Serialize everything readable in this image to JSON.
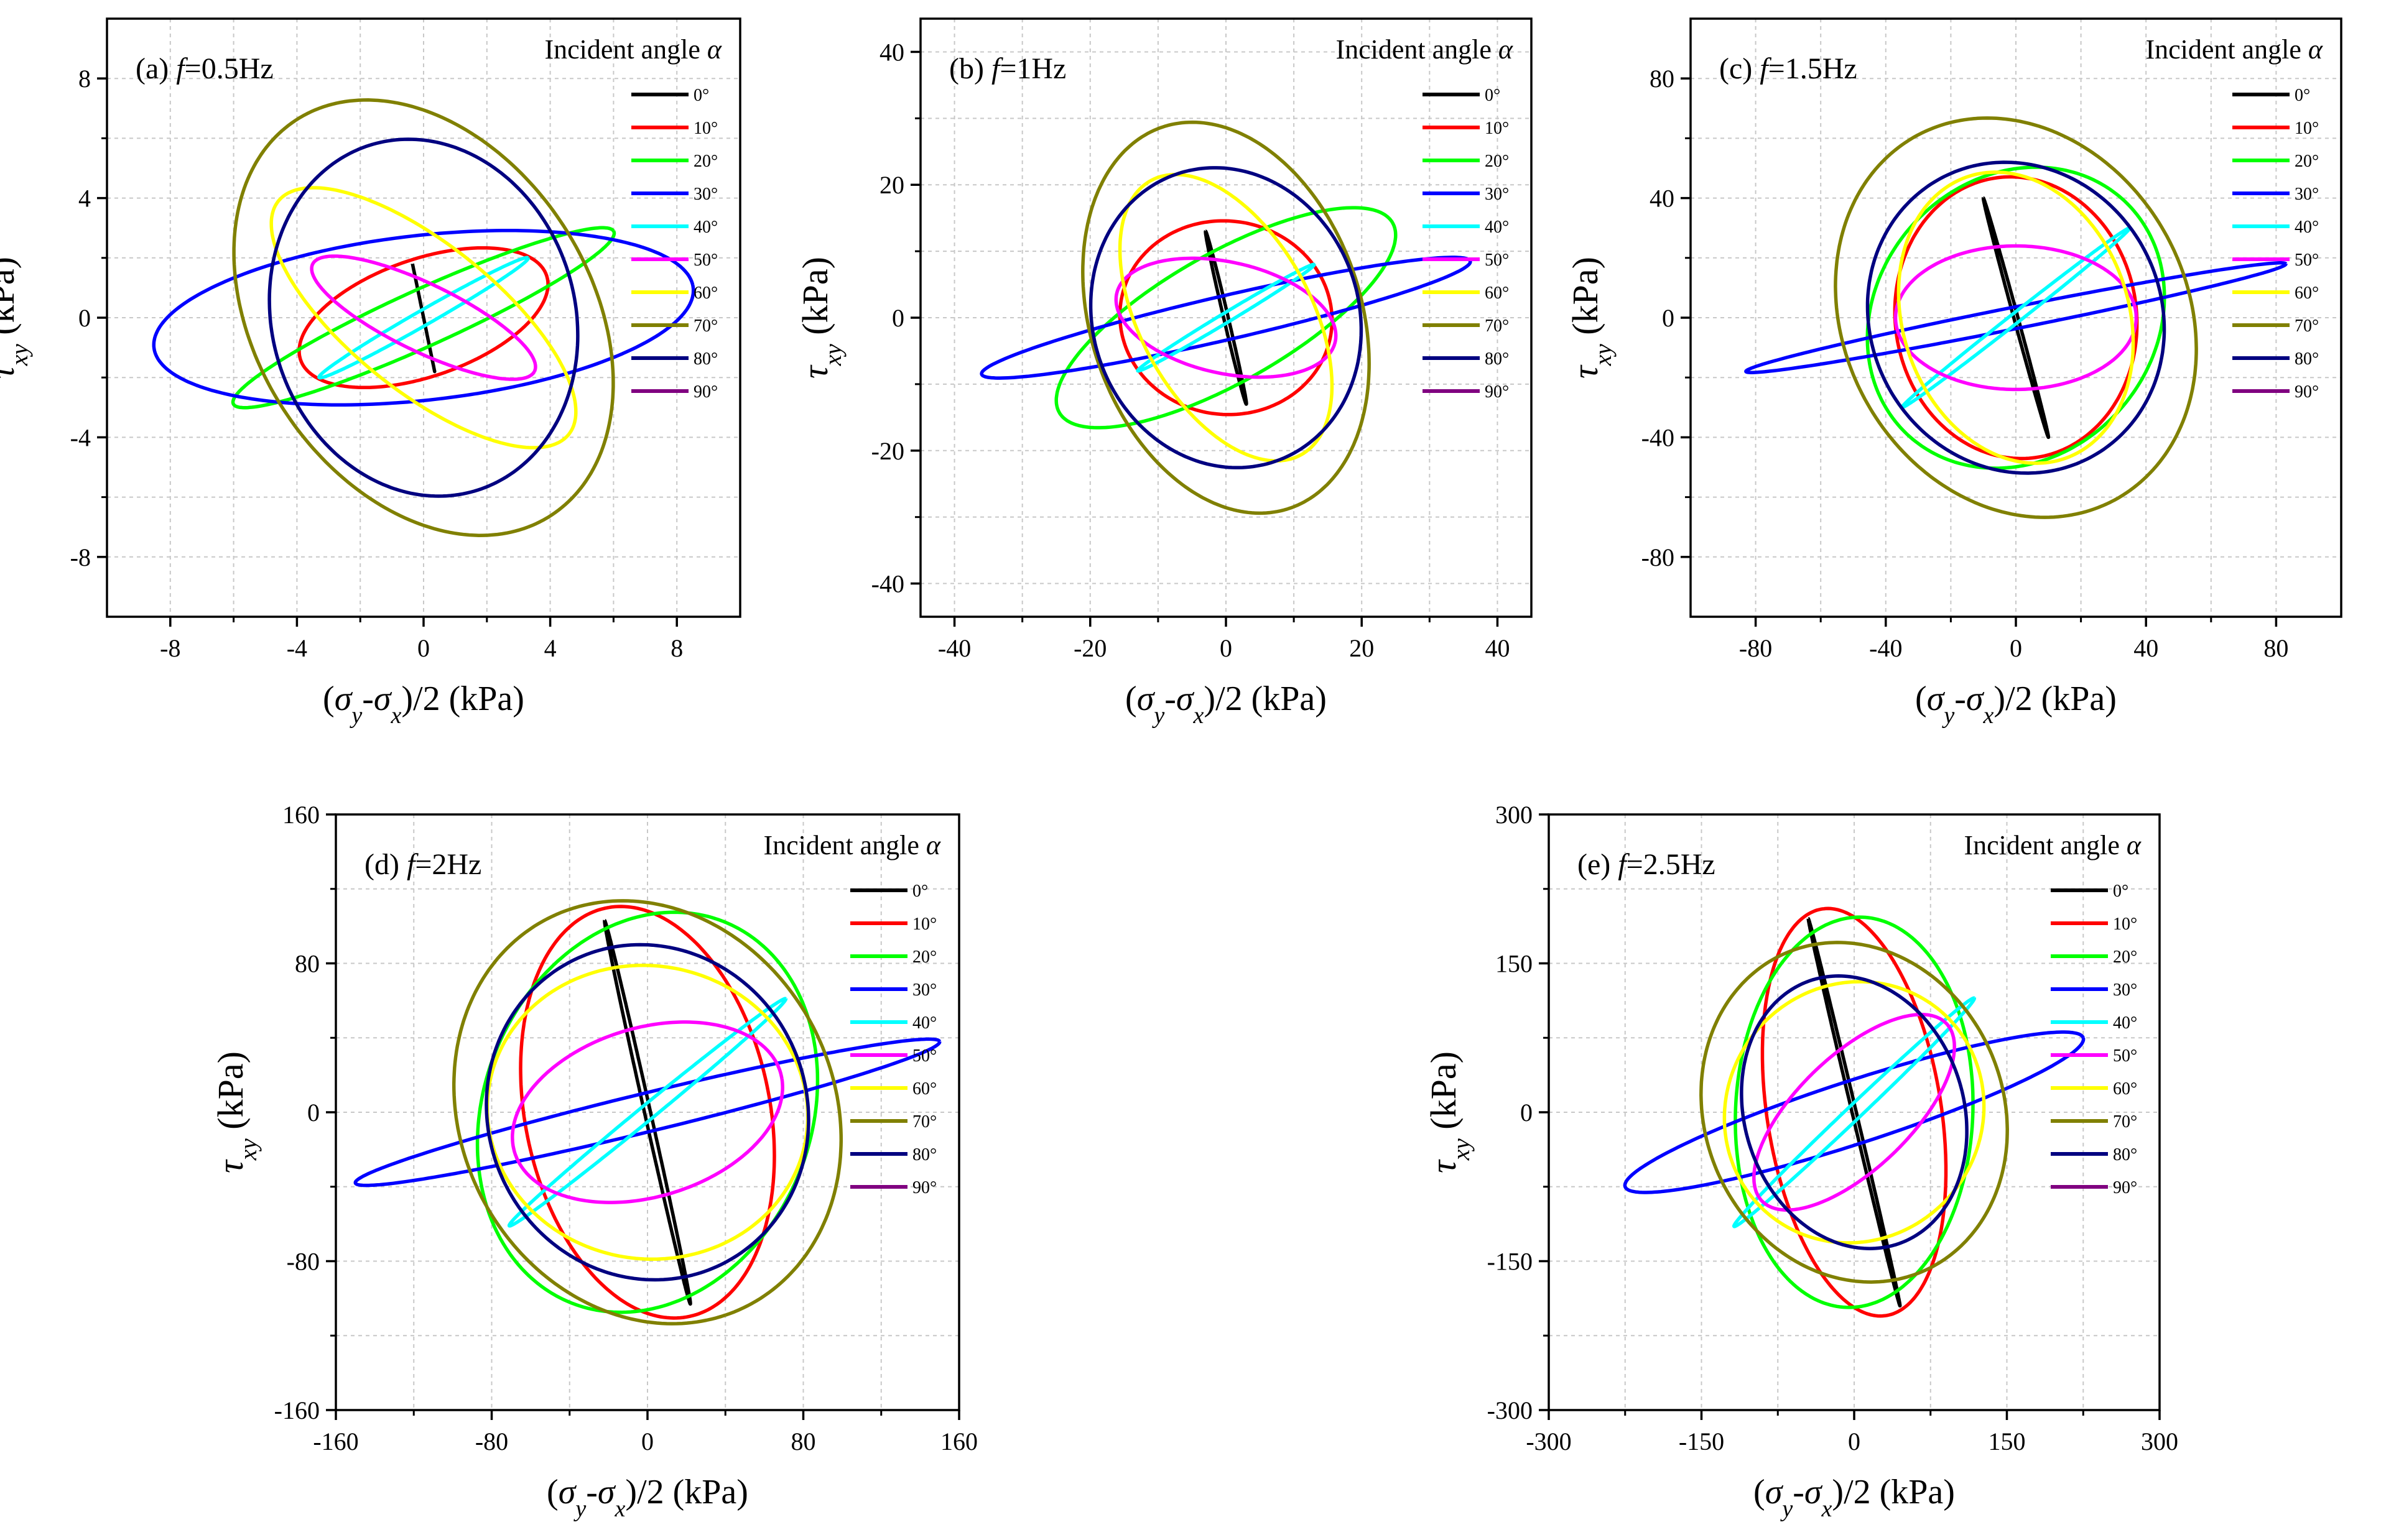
{
  "figure": {
    "legend_title": "Incident angle α",
    "xlabel": "(σy-σx)/2 (kPa)",
    "ylabel": "τxy (kPa)"
  },
  "legend_entries": [
    {
      "label": "0°",
      "color": "#000000"
    },
    {
      "label": "10°",
      "color": "#ff0000"
    },
    {
      "label": "20°",
      "color": "#00ff00"
    },
    {
      "label": "30°",
      "color": "#0000ff"
    },
    {
      "label": "40°",
      "color": "#00ffff"
    },
    {
      "label": "50°",
      "color": "#ff00ff"
    },
    {
      "label": "60°",
      "color": "#ffff00"
    },
    {
      "label": "70°",
      "color": "#808000"
    },
    {
      "label": "80°",
      "color": "#000080"
    },
    {
      "label": "90°",
      "color": "#800080"
    }
  ],
  "chart_data": [
    {
      "type": "line",
      "panel_label": "(a)",
      "freq_label": "f=0.5Hz",
      "xlim": [
        -10,
        10
      ],
      "ylim": [
        -10,
        10
      ],
      "xticks": [
        -8,
        -4,
        0,
        4,
        8
      ],
      "yticks": [
        -8,
        -4,
        0,
        4,
        8
      ],
      "series": [
        {
          "name": "0°",
          "ellipse": {
            "cx": 0,
            "cy": 0,
            "u": [
              -0.35,
              1.8
            ],
            "v": [
              0,
              0
            ]
          }
        },
        {
          "name": "10°",
          "ellipse": {
            "cx": 0,
            "cy": 0,
            "u": [
              3.8,
              1.6
            ],
            "v": [
              -1.0,
              1.7
            ]
          }
        },
        {
          "name": "20°",
          "ellipse": {
            "cx": 0,
            "cy": 0,
            "u": [
              6.0,
              2.9
            ],
            "v": [
              -0.5,
              0.8
            ]
          }
        },
        {
          "name": "30°",
          "ellipse": {
            "cx": 0,
            "cy": 0,
            "u": [
              8.5,
              1.1
            ],
            "v": [
              0.6,
              -2.7
            ]
          }
        },
        {
          "name": "40°",
          "ellipse": {
            "cx": 0,
            "cy": 0,
            "u": [
              3.3,
              2.0
            ],
            "v": [
              -0.15,
              0.2
            ]
          }
        },
        {
          "name": "50°",
          "ellipse": {
            "cx": 0,
            "cy": 0,
            "u": [
              3.5,
              -1.8
            ],
            "v": [
              0.5,
              1.0
            ]
          }
        },
        {
          "name": "60°",
          "ellipse": {
            "cx": 0,
            "cy": 0,
            "u": [
              4.5,
              -4.0
            ],
            "v": [
              1.7,
              1.7
            ]
          }
        },
        {
          "name": "70°",
          "ellipse": {
            "cx": 0,
            "cy": 0,
            "u": [
              3.3,
              -7.0
            ],
            "v": [
              5.0,
              2.0
            ]
          }
        },
        {
          "name": "80°",
          "ellipse": {
            "cx": 0,
            "cy": 0,
            "u": [
              -1.6,
              5.8
            ],
            "v": [
              4.6,
              1.4
            ]
          }
        },
        {
          "name": "90°",
          "ellipse": {
            "cx": 0,
            "cy": 0,
            "u": [
              0,
              0
            ],
            "v": [
              0,
              0
            ]
          }
        }
      ]
    },
    {
      "type": "line",
      "panel_label": "(b)",
      "freq_label": "f=1Hz",
      "xlim": [
        -45,
        45
      ],
      "ylim": [
        -45,
        45
      ],
      "xticks": [
        -40,
        -20,
        0,
        20,
        40
      ],
      "yticks": [
        -40,
        -20,
        0,
        20,
        40
      ],
      "series": [
        {
          "name": "0°",
          "ellipse": {
            "cx": 0,
            "cy": 0,
            "u": [
              -3,
              13
            ],
            "v": [
              0.3,
              0.2
            ]
          }
        },
        {
          "name": "10°",
          "ellipse": {
            "cx": 0,
            "cy": 0,
            "u": [
              -2,
              14.5
            ],
            "v": [
              15.5,
              1.5
            ]
          }
        },
        {
          "name": "20°",
          "ellipse": {
            "cx": 0,
            "cy": 0,
            "u": [
              24,
              15
            ],
            "v": [
              -7,
              7
            ]
          }
        },
        {
          "name": "30°",
          "ellipse": {
            "cx": 0,
            "cy": 0,
            "u": [
              36,
              8.5
            ],
            "v": [
              0.8,
              -3.2
            ]
          }
        },
        {
          "name": "40°",
          "ellipse": {
            "cx": 0,
            "cy": 0,
            "u": [
              13,
              8
            ],
            "v": [
              -0.4,
              0.6
            ]
          }
        },
        {
          "name": "50°",
          "ellipse": {
            "cx": 0,
            "cy": 0,
            "u": [
              16,
              -4
            ],
            "v": [
              2.5,
              8
            ]
          }
        },
        {
          "name": "60°",
          "ellipse": {
            "cx": 0,
            "cy": 0,
            "u": [
              12,
              -20
            ],
            "v": [
              10,
              8
            ]
          }
        },
        {
          "name": "70°",
          "ellipse": {
            "cx": 0,
            "cy": 0,
            "u": [
              11,
              -28
            ],
            "v": [
              18,
              9
            ]
          }
        },
        {
          "name": "80°",
          "ellipse": {
            "cx": 0,
            "cy": 0,
            "u": [
              -6,
              22
            ],
            "v": [
              19,
              5
            ]
          }
        },
        {
          "name": "90°",
          "ellipse": {
            "cx": 0,
            "cy": 0,
            "u": [
              0,
              0
            ],
            "v": [
              0,
              0
            ]
          }
        }
      ]
    },
    {
      "type": "line",
      "panel_label": "(c)",
      "freq_label": "f=1.5Hz",
      "xlim": [
        -100,
        100
      ],
      "ylim": [
        -100,
        100
      ],
      "xticks": [
        -80,
        -40,
        0,
        40,
        80
      ],
      "yticks": [
        -80,
        -40,
        0,
        40,
        80
      ],
      "series": [
        {
          "name": "0°",
          "ellipse": {
            "cx": 0,
            "cy": 0,
            "u": [
              -10,
              40
            ],
            "v": [
              0.6,
              0.2
            ]
          }
        },
        {
          "name": "10°",
          "ellipse": {
            "cx": 0,
            "cy": 0,
            "u": [
              -4,
              47
            ],
            "v": [
              37,
              3
            ]
          }
        },
        {
          "name": "20°",
          "ellipse": {
            "cx": 0,
            "cy": 0,
            "u": [
              22,
              47
            ],
            "v": [
              -40,
              18
            ]
          }
        },
        {
          "name": "30°",
          "ellipse": {
            "cx": 0,
            "cy": 0,
            "u": [
              83,
              18
            ],
            "v": [
              0.8,
              -3.5
            ]
          }
        },
        {
          "name": "40°",
          "ellipse": {
            "cx": 0,
            "cy": 0,
            "u": [
              35,
              30
            ],
            "v": [
              -1,
              1.2
            ]
          }
        },
        {
          "name": "50°",
          "ellipse": {
            "cx": 0,
            "cy": 0,
            "u": [
              37,
              0
            ],
            "v": [
              0,
              24
            ]
          }
        },
        {
          "name": "60°",
          "ellipse": {
            "cx": 0,
            "cy": 0,
            "u": [
              12,
              -48
            ],
            "v": [
              34,
              8
            ]
          }
        },
        {
          "name": "70°",
          "ellipse": {
            "cx": 0,
            "cy": 0,
            "u": [
              -24,
              64
            ],
            "v": [
              50,
              19
            ]
          }
        },
        {
          "name": "80°",
          "ellipse": {
            "cx": 0,
            "cy": 0,
            "u": [
              12,
              -51
            ],
            "v": [
              44,
              10
            ]
          }
        },
        {
          "name": "90°",
          "ellipse": {
            "cx": 0,
            "cy": 0,
            "u": [
              0,
              0
            ],
            "v": [
              0,
              0
            ]
          }
        }
      ]
    },
    {
      "type": "line",
      "panel_label": "(d)",
      "freq_label": "f=2Hz",
      "xlim": [
        -160,
        160
      ],
      "ylim": [
        -160,
        160
      ],
      "xticks": [
        -160,
        -80,
        0,
        80,
        160
      ],
      "yticks": [
        -160,
        -80,
        0,
        80,
        160
      ],
      "series": [
        {
          "name": "0°",
          "ellipse": {
            "cx": 0,
            "cy": 0,
            "u": [
              -22,
              103
            ],
            "v": [
              1.5,
              0.3
            ]
          }
        },
        {
          "name": "10°",
          "ellipse": {
            "cx": 0,
            "cy": 0,
            "u": [
              -20,
              110
            ],
            "v": [
              62,
              11
            ]
          }
        },
        {
          "name": "20°",
          "ellipse": {
            "cx": 0,
            "cy": 0,
            "u": [
              35,
              104
            ],
            "v": [
              -80,
              27
            ]
          }
        },
        {
          "name": "30°",
          "ellipse": {
            "cx": 0,
            "cy": 0,
            "u": [
              150,
              38
            ],
            "v": [
              2.5,
              -10
            ]
          }
        },
        {
          "name": "40°",
          "ellipse": {
            "cx": 0,
            "cy": 0,
            "u": [
              71,
              61
            ],
            "v": [
              -2.5,
              3
            ]
          }
        },
        {
          "name": "50°",
          "ellipse": {
            "cx": 0,
            "cy": 0,
            "u": [
              69,
              18
            ],
            "v": [
              -7,
              45
            ]
          }
        },
        {
          "name": "60°",
          "ellipse": {
            "cx": 0,
            "cy": 0,
            "u": [
              77,
              -30
            ],
            "v": [
              29,
              73
            ]
          }
        },
        {
          "name": "70°",
          "ellipse": {
            "cx": 0,
            "cy": 0,
            "u": [
              40,
              -109
            ],
            "v": [
              91,
              32
            ]
          }
        },
        {
          "name": "80°",
          "ellipse": {
            "cx": 0,
            "cy": 0,
            "u": [
              21,
              -88
            ],
            "v": [
              80,
              19
            ]
          }
        },
        {
          "name": "90°",
          "ellipse": {
            "cx": 0,
            "cy": 0,
            "u": [
              0,
              0
            ],
            "v": [
              0,
              0
            ]
          }
        }
      ]
    },
    {
      "type": "line",
      "panel_label": "(e)",
      "freq_label": "f=2.5Hz",
      "xlim": [
        -300,
        300
      ],
      "ylim": [
        -300,
        300
      ],
      "xticks": [
        -300,
        -150,
        0,
        150,
        300
      ],
      "yticks": [
        -300,
        -150,
        0,
        150,
        300
      ],
      "series": [
        {
          "name": "0°",
          "ellipse": {
            "cx": 0,
            "cy": 0,
            "u": [
              -45,
              195
            ],
            "v": [
              2,
              0.5
            ]
          }
        },
        {
          "name": "10°",
          "ellipse": {
            "cx": 0,
            "cy": 0,
            "u": [
              -30,
              205
            ],
            "v": [
              85,
              10
            ]
          }
        },
        {
          "name": "20°",
          "ellipse": {
            "cx": 0,
            "cy": 0,
            "u": [
              20,
              195
            ],
            "v": [
              -115,
              25
            ]
          }
        },
        {
          "name": "30°",
          "ellipse": {
            "cx": 0,
            "cy": 0,
            "u": [
              225,
              75
            ],
            "v": [
              10,
              -30
            ]
          }
        },
        {
          "name": "40°",
          "ellipse": {
            "cx": 0,
            "cy": 0,
            "u": [
              118,
              115
            ],
            "v": [
              -5,
              5
            ]
          }
        },
        {
          "name": "50°",
          "ellipse": {
            "cx": 0,
            "cy": 0,
            "u": [
              90,
              90
            ],
            "v": [
              -40,
              40
            ]
          }
        },
        {
          "name": "60°",
          "ellipse": {
            "cx": 0,
            "cy": 0,
            "u": [
              25,
              130
            ],
            "v": [
              -125,
              20
            ]
          }
        },
        {
          "name": "70°",
          "ellipse": {
            "cx": 0,
            "cy": 0,
            "u": [
              -55,
              165
            ],
            "v": [
              140,
              45
            ]
          }
        },
        {
          "name": "80°",
          "ellipse": {
            "cx": 0,
            "cy": 0,
            "u": [
              -35,
              135
            ],
            "v": [
              105,
              25
            ]
          }
        },
        {
          "name": "90°",
          "ellipse": {
            "cx": 0,
            "cy": 0,
            "u": [
              0,
              0
            ],
            "v": [
              0,
              0
            ]
          }
        }
      ]
    }
  ]
}
